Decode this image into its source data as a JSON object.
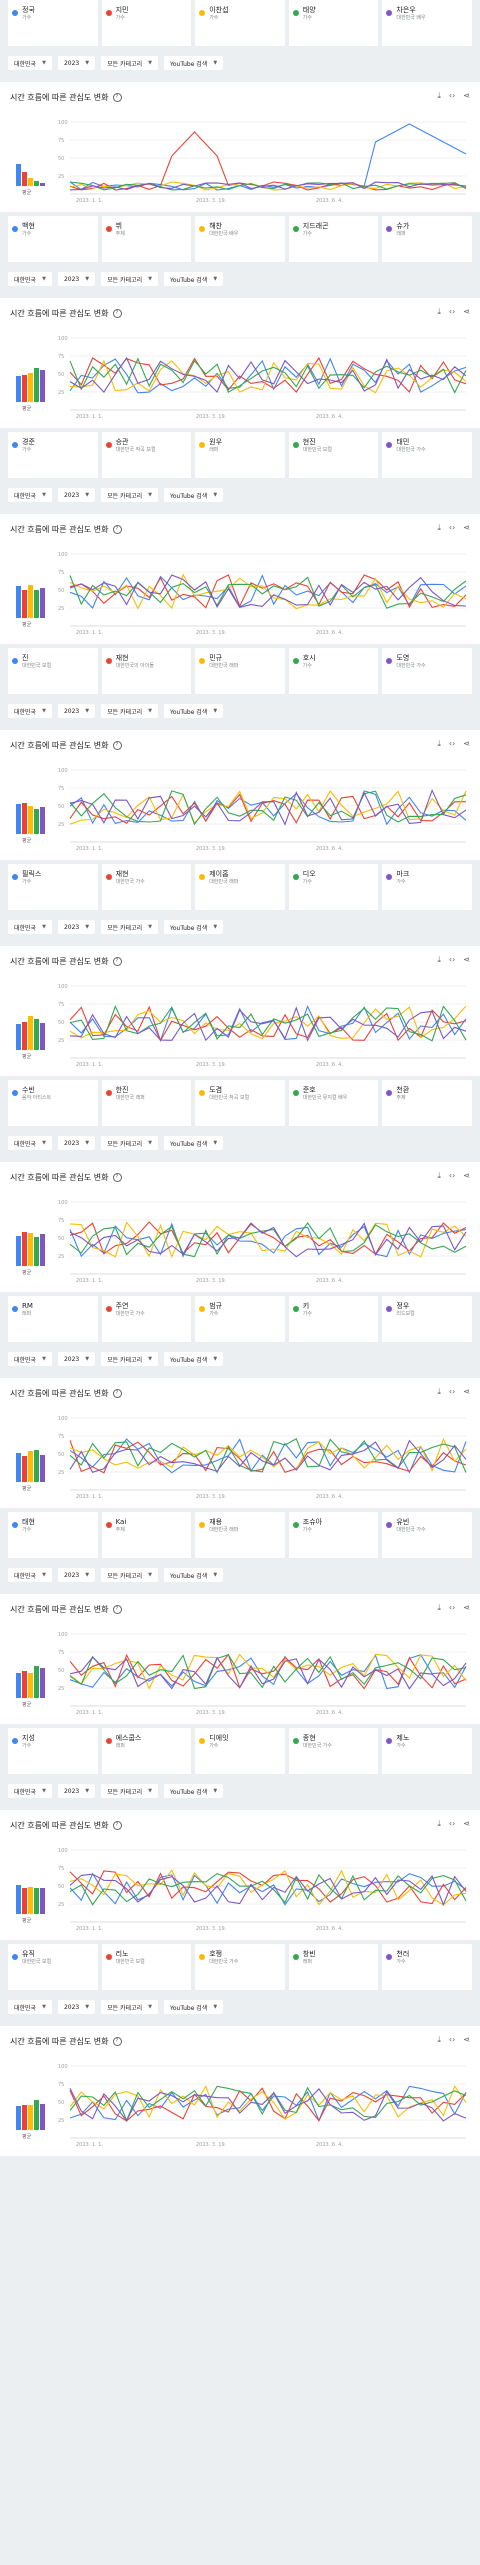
{
  "filters": {
    "country": "대한민국",
    "year": "2023",
    "category": "모든 카테고리",
    "search_type": "YouTube 검색"
  },
  "card_title": "시간 흐름에 따른 관심도 변화",
  "avg_label": "평균",
  "y_ticks": [
    "100",
    "75",
    "50",
    "25"
  ],
  "x_ticks": [
    "2023. 1. 1.",
    "2023. 3. 19.",
    "2023. 6. 4."
  ],
  "colors": {
    "blue": "#4285f4",
    "red": "#ea4335",
    "yellow": "#fbbc04",
    "green": "#34a853",
    "purple": "#7e57c2"
  },
  "groups": [
    {
      "chips": [
        {
          "t": "정국",
          "s": "가수"
        },
        {
          "t": "지민",
          "s": "가수"
        },
        {
          "t": "이찬섭",
          "s": "가수"
        },
        {
          "t": "태양",
          "s": "가수"
        },
        {
          "t": "차은우",
          "s": "대한민국 배우"
        }
      ]
    },
    {
      "chips": [
        {
          "t": "백현",
          "s": "가수"
        },
        {
          "t": "뷔",
          "s": "주제"
        },
        {
          "t": "해찬",
          "s": "대한민국 배우"
        },
        {
          "t": "지드래곤",
          "s": "가수"
        },
        {
          "t": "슈가",
          "s": "래퍼"
        }
      ]
    },
    {
      "chips": [
        {
          "t": "경준",
          "s": "가수"
        },
        {
          "t": "승관",
          "s": "대한민국 작곡 보컬"
        },
        {
          "t": "원우",
          "s": "래퍼"
        },
        {
          "t": "현진",
          "s": "대한민국 보컬"
        },
        {
          "t": "태민",
          "s": "대한민국 가수"
        }
      ]
    },
    {
      "chips": [
        {
          "t": "진",
          "s": "대한민국 보컬"
        },
        {
          "t": "재현",
          "s": "대한민국의 아이돌"
        },
        {
          "t": "민규",
          "s": "대한민국 래퍼"
        },
        {
          "t": "호시",
          "s": "가수"
        },
        {
          "t": "도영",
          "s": "대한민국 가수"
        }
      ]
    },
    {
      "chips": [
        {
          "t": "필릭스",
          "s": "가수"
        },
        {
          "t": "재현",
          "s": "대한민국 가수"
        },
        {
          "t": "제이홉",
          "s": "대한민국 래퍼"
        },
        {
          "t": "디오",
          "s": "가수"
        },
        {
          "t": "마크",
          "s": "가수"
        }
      ]
    },
    {
      "chips": [
        {
          "t": "수빈",
          "s": "음악 아티스트"
        },
        {
          "t": "한진",
          "s": "대한민국 래퍼"
        },
        {
          "t": "도겸",
          "s": "대한민국 작곡 보컬"
        },
        {
          "t": "준호",
          "s": "대한민국 뮤지컬 배우"
        },
        {
          "t": "천환",
          "s": "주제"
        }
      ]
    },
    {
      "chips": [
        {
          "t": "RM",
          "s": "래퍼"
        },
        {
          "t": "주연",
          "s": "대한민국 가수"
        },
        {
          "t": "범규",
          "s": "가수"
        },
        {
          "t": "키",
          "s": "가수"
        },
        {
          "t": "정우",
          "s": "리드보컬"
        }
      ]
    },
    {
      "chips": [
        {
          "t": "태현",
          "s": "가수"
        },
        {
          "t": "Kai",
          "s": "주제"
        },
        {
          "t": "재용",
          "s": "대한민국 래퍼"
        },
        {
          "t": "조슈아",
          "s": "가수"
        },
        {
          "t": "유빈",
          "s": "대한민국 가수"
        }
      ]
    },
    {
      "chips": [
        {
          "t": "지성",
          "s": "가수"
        },
        {
          "t": "에스쿱스",
          "s": "래퍼"
        },
        {
          "t": "디에잇",
          "s": "가수"
        },
        {
          "t": "종현",
          "s": "대한민국 가수"
        },
        {
          "t": "제노",
          "s": "가수"
        }
      ]
    },
    {
      "chips": [
        {
          "t": "유직",
          "s": "대한민국 보컬"
        },
        {
          "t": "리노",
          "s": "대한민국 보컬"
        },
        {
          "t": "호쩡",
          "s": "대한민국 가수"
        },
        {
          "t": "창빈",
          "s": "래퍼"
        },
        {
          "t": "천러",
          "s": "가수"
        }
      ]
    }
  ]
}
